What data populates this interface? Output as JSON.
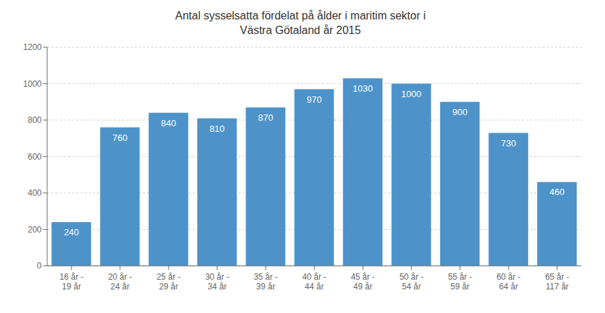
{
  "chart_data": {
    "type": "bar",
    "title": "Antal sysselsatta fördelat på ålder i maritim sektor i\nVästra Götaland år 2015",
    "categories": [
      "16 år -\n19 år",
      "20 år -\n24 år",
      "25 år -\n29 år",
      "30 år -\n34 år",
      "35 år -\n39 år",
      "40 år -\n44 år",
      "45 år -\n49 år",
      "50 år -\n54 år",
      "55 år -\n59 år",
      "60 år -\n64 år",
      "65 år -\n117 år"
    ],
    "values": [
      240,
      760,
      840,
      810,
      870,
      970,
      1030,
      1000,
      900,
      730,
      460
    ],
    "color": "#4D93C9",
    "ylim": [
      0,
      1200
    ],
    "yticks": [
      0,
      200,
      400,
      600,
      800,
      1000,
      1200
    ],
    "grid": true,
    "data_labels": true
  }
}
